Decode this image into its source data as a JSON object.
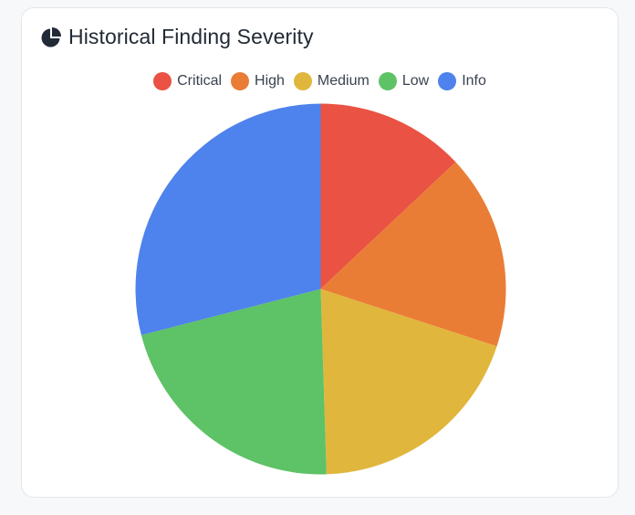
{
  "card": {
    "title": "Historical Finding Severity",
    "title_icon": "pie-chart-icon"
  },
  "legend": [
    {
      "label": "Critical",
      "color": "#ea5243"
    },
    {
      "label": "High",
      "color": "#ea7d36"
    },
    {
      "label": "Medium",
      "color": "#e1b63d"
    },
    {
      "label": "Low",
      "color": "#5ec266"
    },
    {
      "label": "Info",
      "color": "#4e82ec"
    }
  ],
  "chart_data": {
    "type": "pie",
    "title": "Historical Finding Severity",
    "legend_position": "top",
    "categories": [
      "Critical",
      "High",
      "Medium",
      "Low",
      "Info"
    ],
    "values": [
      13.0,
      17.0,
      19.5,
      21.5,
      29.0
    ],
    "colors": [
      "#ea5243",
      "#ea7d36",
      "#e1b63d",
      "#5ec266",
      "#4e82ec"
    ]
  }
}
